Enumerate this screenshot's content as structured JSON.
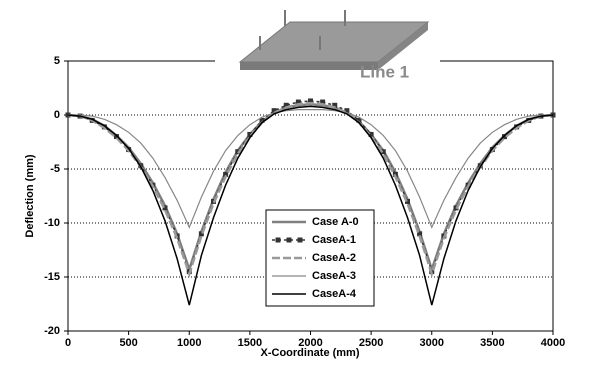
{
  "chart_data": {
    "type": "line",
    "xlabel": "X-Coordinate (mm)",
    "ylabel": "Deflection (mm)",
    "annotation": "Line 1",
    "x": [
      0,
      100,
      200,
      300,
      400,
      500,
      600,
      700,
      800,
      900,
      1000,
      1100,
      1200,
      1300,
      1400,
      1500,
      1600,
      1700,
      1800,
      1900,
      2000,
      2100,
      2200,
      2300,
      2400,
      2500,
      2600,
      2700,
      2800,
      2900,
      3000,
      3100,
      3200,
      3300,
      3400,
      3500,
      3600,
      3700,
      3800,
      3900,
      4000
    ],
    "series": [
      {
        "name": "Case A-0",
        "color": "#808080",
        "width": 2.5,
        "dash": false,
        "values": [
          0,
          -0.1,
          -0.4,
          -1.0,
          -1.9,
          -3.0,
          -4.5,
          -6.3,
          -8.4,
          -11.0,
          -14.3,
          -10.8,
          -7.8,
          -5.3,
          -3.3,
          -1.8,
          -0.6,
          0.2,
          0.7,
          0.9,
          1.0,
          0.9,
          0.7,
          0.2,
          -0.6,
          -1.8,
          -3.3,
          -5.3,
          -7.8,
          -10.8,
          -14.3,
          -11.0,
          -8.4,
          -6.3,
          -4.5,
          -3.0,
          -1.9,
          -1.0,
          -0.4,
          -0.1,
          0
        ]
      },
      {
        "name": "CaseA-1",
        "color": "#333333",
        "width": 1.5,
        "dash": true,
        "marker": "square",
        "values": [
          0,
          -0.1,
          -0.5,
          -1.1,
          -2.0,
          -3.2,
          -4.7,
          -6.5,
          -8.6,
          -11.2,
          -14.5,
          -11.0,
          -8.0,
          -5.5,
          -3.4,
          -1.8,
          -0.5,
          0.4,
          0.9,
          1.2,
          1.3,
          1.2,
          0.9,
          0.4,
          -0.5,
          -1.8,
          -3.4,
          -5.5,
          -8.0,
          -11.0,
          -14.5,
          -11.2,
          -8.6,
          -6.5,
          -4.7,
          -3.2,
          -2.0,
          -1.1,
          -0.5,
          -0.1,
          0
        ]
      },
      {
        "name": "CaseA-2",
        "color": "#999999",
        "width": 2.5,
        "dash": true,
        "values": [
          0,
          -0.1,
          -0.5,
          -1.2,
          -2.1,
          -3.3,
          -4.8,
          -6.6,
          -8.8,
          -11.4,
          -14.7,
          -11.2,
          -8.2,
          -5.7,
          -3.6,
          -2.0,
          -0.7,
          0.2,
          0.7,
          1.0,
          1.1,
          1.0,
          0.7,
          0.2,
          -0.7,
          -2.0,
          -3.6,
          -5.7,
          -8.2,
          -11.2,
          -14.7,
          -11.4,
          -8.8,
          -6.6,
          -4.8,
          -3.3,
          -2.1,
          -1.2,
          -0.5,
          -0.1,
          0
        ]
      },
      {
        "name": "CaseA-3",
        "color": "#888888",
        "width": 1.2,
        "dash": false,
        "values": [
          0,
          0,
          -0.1,
          -0.4,
          -0.9,
          -1.6,
          -2.6,
          -4.0,
          -5.8,
          -7.9,
          -10.4,
          -7.6,
          -5.2,
          -3.3,
          -1.9,
          -0.9,
          -0.2,
          0.2,
          0.4,
          0.5,
          0.5,
          0.5,
          0.4,
          0.2,
          -0.2,
          -0.9,
          -1.9,
          -3.3,
          -5.2,
          -7.6,
          -10.4,
          -7.9,
          -5.8,
          -4.0,
          -2.6,
          -1.6,
          -0.9,
          -0.4,
          -0.1,
          0,
          0
        ]
      },
      {
        "name": "CaseA-4",
        "color": "#000000",
        "width": 1.5,
        "dash": false,
        "values": [
          0,
          -0.1,
          -0.4,
          -1.0,
          -1.9,
          -3.1,
          -4.8,
          -7.0,
          -9.8,
          -13.3,
          -17.6,
          -13.0,
          -9.5,
          -6.5,
          -4.0,
          -2.1,
          -0.7,
          0.1,
          0.5,
          0.7,
          0.8,
          0.7,
          0.5,
          0.1,
          -0.7,
          -2.1,
          -4.0,
          -6.5,
          -9.5,
          -13.0,
          -17.6,
          -13.3,
          -9.8,
          -7.0,
          -4.8,
          -3.1,
          -1.9,
          -1.0,
          -0.4,
          -0.1,
          0
        ]
      }
    ],
    "xlim": [
      0,
      4000
    ],
    "xticks": [
      0,
      500,
      1000,
      1500,
      2000,
      2500,
      3000,
      3500,
      4000
    ],
    "ylim": [
      -20,
      5
    ],
    "yticks": [
      -20,
      -15,
      -10,
      -5,
      0,
      5
    ],
    "grid": true
  }
}
